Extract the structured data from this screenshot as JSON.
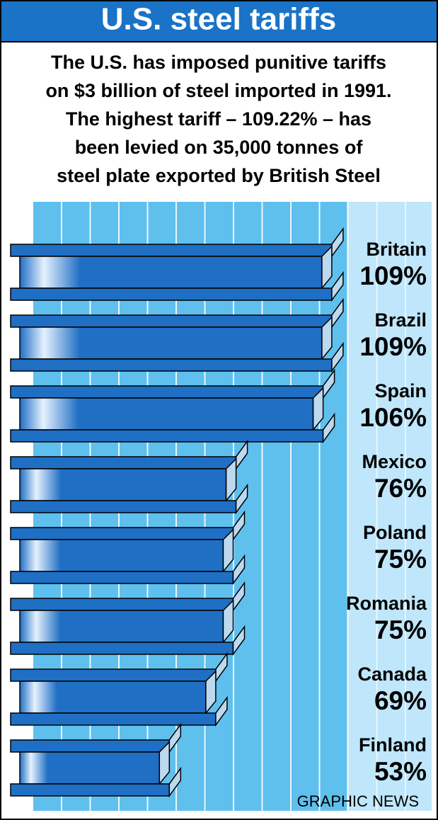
{
  "chart_data": {
    "type": "bar",
    "title": "U.S. steel tariffs",
    "subtitle": [
      "The U.S. has imposed punitive tariffs",
      "on $3 billion of steel imported in 1991.",
      "The highest tariff  – 109.22% – has",
      "been levied on 35,000 tonnes of",
      "steel plate exported by British Steel"
    ],
    "categories": [
      "Britain",
      "Brazil",
      "Spain",
      "Mexico",
      "Poland",
      "Romania",
      "Canada",
      "Finland"
    ],
    "values": [
      109,
      109,
      106,
      76,
      75,
      75,
      69,
      53
    ],
    "value_labels": [
      "109%",
      "109%",
      "106%",
      "76%",
      "75%",
      "75%",
      "69%",
      "53%"
    ],
    "color": "#1f6fc4",
    "source": "GRAPHIC NEWS"
  }
}
